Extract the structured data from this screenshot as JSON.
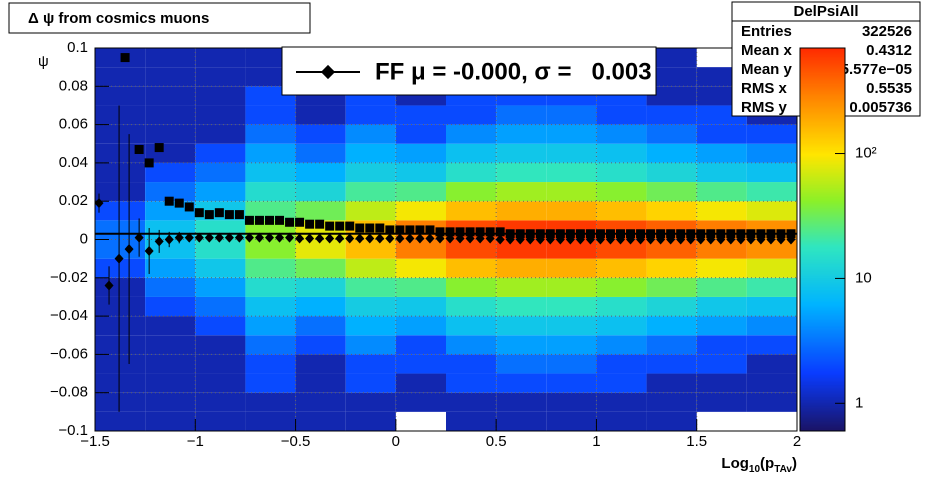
{
  "chart_data": {
    "type": "heatmap-profile",
    "title": "Δ ψ from cosmics muons",
    "y_label": "ψ",
    "x_label_parts": [
      {
        "text": "Log",
        "sub": false
      },
      {
        "text": "10",
        "sub": true
      },
      {
        "text": "(p",
        "sub": false
      },
      {
        "text": "TAv",
        "sub": true
      },
      {
        "text": ")",
        "sub": false
      }
    ],
    "xlim": [
      -1.5,
      2
    ],
    "ylim": [
      -0.1,
      0.1
    ],
    "xticks": [
      {
        "value": -1.5,
        "label": "−1.5"
      },
      {
        "value": -1,
        "label": "−1"
      },
      {
        "value": -0.5,
        "label": "−0.5"
      },
      0,
      0.5,
      1,
      1.5,
      2
    ],
    "yticks": [
      {
        "value": -0.1,
        "label": "−0.1"
      },
      {
        "value": -0.08,
        "label": "−0.08"
      },
      {
        "value": -0.06,
        "label": "−0.06"
      },
      {
        "value": -0.04,
        "label": "−0.04"
      },
      {
        "value": -0.02,
        "label": "−0.02"
      },
      0,
      0.02,
      0.04,
      0.06,
      0.08,
      0.1
    ],
    "zlim": [
      0.6,
      700
    ],
    "zticks": [
      1,
      10,
      {
        "value": 100,
        "label": "10²"
      }
    ],
    "zlog": true,
    "grid": true,
    "colormap": [
      [
        0,
        "#1a1466"
      ],
      [
        0.15,
        "#0a3cff"
      ],
      [
        0.33,
        "#00b4ff"
      ],
      [
        0.48,
        "#30e6c0"
      ],
      [
        0.6,
        "#8cf028"
      ],
      [
        0.72,
        "#ffe600"
      ],
      [
        0.86,
        "#ff8c00"
      ],
      [
        1,
        "#ff2a00"
      ]
    ],
    "heatmap": {
      "xbins": [
        -1.5,
        -1.25,
        -1,
        -0.75,
        -0.5,
        -0.25,
        0,
        0.25,
        0.5,
        0.75,
        1,
        1.25,
        1.5,
        1.75,
        2
      ],
      "ybins": [
        -0.1,
        -0.09,
        -0.08,
        -0.07,
        -0.06,
        -0.05,
        -0.04,
        -0.03,
        -0.02,
        -0.01,
        0,
        0.01,
        0.02,
        0.03,
        0.04,
        0.05,
        0.06,
        0.07,
        0.08,
        0.09,
        0.1
      ],
      "counts": [
        [
          1,
          1,
          1,
          1,
          1,
          1,
          1,
          1,
          2,
          3,
          3,
          2,
          1,
          1,
          1,
          1,
          1,
          1,
          1,
          1
        ],
        [
          1,
          1,
          1,
          1,
          1,
          1,
          2,
          3,
          5,
          8,
          8,
          5,
          3,
          2,
          1,
          1,
          1,
          1,
          1,
          1
        ],
        [
          1,
          1,
          1,
          1,
          1,
          2,
          3,
          5,
          9,
          15,
          15,
          9,
          5,
          3,
          2,
          1,
          1,
          1,
          1,
          1
        ],
        [
          1,
          1,
          2,
          2,
          3,
          5,
          8,
          14,
          24,
          40,
          40,
          24,
          14,
          8,
          5,
          3,
          2,
          2,
          1,
          1
        ],
        [
          1,
          1,
          1,
          1,
          2,
          3,
          6,
          12,
          32,
          80,
          80,
          32,
          12,
          6,
          3,
          2,
          1,
          1,
          1,
          1
        ],
        [
          1,
          1,
          2,
          2,
          4,
          6,
          10,
          22,
          60,
          150,
          150,
          60,
          22,
          10,
          6,
          4,
          2,
          2,
          1,
          1
        ],
        [
          0,
          1,
          1,
          2,
          2,
          5,
          9,
          24,
          90,
          300,
          300,
          90,
          24,
          9,
          5,
          2,
          2,
          1,
          1,
          0
        ],
        [
          1,
          1,
          2,
          2,
          4,
          8,
          15,
          40,
          150,
          500,
          500,
          150,
          40,
          15,
          8,
          4,
          2,
          2,
          1,
          1
        ],
        [
          1,
          1,
          2,
          3,
          5,
          9,
          18,
          48,
          180,
          600,
          600,
          180,
          48,
          18,
          9,
          5,
          3,
          2,
          1,
          1
        ],
        [
          1,
          1,
          2,
          3,
          5,
          9,
          18,
          48,
          180,
          600,
          600,
          180,
          48,
          18,
          9,
          5,
          3,
          2,
          1,
          1
        ],
        [
          1,
          1,
          2,
          2,
          4,
          8,
          15,
          40,
          150,
          500,
          500,
          150,
          40,
          15,
          8,
          4,
          2,
          2,
          1,
          1
        ],
        [
          1,
          1,
          1,
          2,
          3,
          6,
          12,
          32,
          120,
          400,
          400,
          120,
          32,
          12,
          6,
          3,
          2,
          1,
          1,
          1
        ],
        [
          0,
          1,
          1,
          2,
          2,
          5,
          9,
          24,
          90,
          300,
          300,
          90,
          24,
          9,
          5,
          2,
          2,
          1,
          1,
          0
        ],
        [
          0,
          1,
          1,
          1,
          2,
          4,
          8,
          20,
          75,
          250,
          250,
          75,
          20,
          8,
          4,
          2,
          1,
          1,
          1,
          0
        ]
      ]
    },
    "reference_line": 0.003,
    "series": [
      {
        "marker": "square",
        "color": "#000000",
        "x": [
          -1.35,
          -1.28,
          -1.23,
          -1.18,
          -1.13,
          -1.08,
          -1.03,
          -0.98,
          -0.93,
          -0.88,
          -0.83,
          -0.78,
          -0.73,
          -0.68,
          -0.63,
          -0.58,
          -0.53,
          -0.48,
          -0.43,
          -0.38,
          -0.33,
          -0.28,
          -0.23,
          -0.18,
          -0.13,
          -0.08,
          -0.03,
          0.02,
          0.07,
          0.12,
          0.17,
          0.22,
          0.27,
          0.32,
          0.37,
          0.42,
          0.47,
          0.52,
          0.57,
          0.62,
          0.67,
          0.72,
          0.77,
          0.82,
          0.87,
          0.92,
          0.97,
          1.02,
          1.07,
          1.12,
          1.17,
          1.22,
          1.27,
          1.32,
          1.37,
          1.42,
          1.47,
          1.52,
          1.57,
          1.62,
          1.67,
          1.72,
          1.77,
          1.82,
          1.87,
          1.92,
          1.97
        ],
        "values": [
          0.095,
          0.047,
          0.04,
          0.048,
          0.02,
          0.019,
          0.017,
          0.014,
          0.013,
          0.014,
          0.013,
          0.013,
          0.01,
          0.01,
          0.01,
          0.01,
          0.009,
          0.009,
          0.008,
          0.008,
          0.007,
          0.007,
          0.007,
          0.006,
          0.006,
          0.006,
          0.005,
          0.005,
          0.005,
          0.005,
          0.005,
          0.004,
          0.004,
          0.004,
          0.004,
          0.004,
          0.004,
          0.004,
          0.003,
          0.003,
          0.003,
          0.003,
          0.003,
          0.003,
          0.003,
          0.003,
          0.003,
          0.003,
          0.003,
          0.003,
          0.003,
          0.003,
          0.003,
          0.003,
          0.003,
          0.003,
          0.003,
          0.003,
          0.003,
          0.003,
          0.003,
          0.003,
          0.003,
          0.003,
          0.003,
          0.003,
          0.003
        ]
      },
      {
        "name": "FF μ = -0.000, σ =   0.003",
        "marker": "diamond",
        "color": "#000000",
        "x": [
          -1.48,
          -1.43,
          -1.38,
          -1.33,
          -1.28,
          -1.23,
          -1.18,
          -1.13,
          -1.08,
          -1.03,
          -0.98,
          -0.93,
          -0.88,
          -0.83,
          -0.78,
          -0.73,
          -0.68,
          -0.63,
          -0.58,
          -0.53,
          -0.48,
          -0.43,
          -0.38,
          -0.33,
          -0.28,
          -0.23,
          -0.18,
          -0.13,
          -0.08,
          -0.03,
          0.02,
          0.07,
          0.12,
          0.17,
          0.22,
          0.27,
          0.32,
          0.37,
          0.42,
          0.47,
          0.52,
          0.57,
          0.62,
          0.67,
          0.72,
          0.77,
          0.82,
          0.87,
          0.92,
          0.97,
          1.02,
          1.07,
          1.12,
          1.17,
          1.22,
          1.27,
          1.32,
          1.37,
          1.42,
          1.47,
          1.52,
          1.57,
          1.62,
          1.67,
          1.72,
          1.77,
          1.82,
          1.87,
          1.92,
          1.97
        ],
        "values": [
          0.019,
          -0.024,
          -0.01,
          -0.005,
          0.001,
          -0.006,
          -0.001,
          0,
          0.001,
          0.001,
          0.001,
          0.001,
          0.001,
          0.001,
          0.001,
          0.001,
          0.001,
          0.001,
          0.001,
          0.001,
          0.0005,
          0.0005,
          0.0005,
          0.0005,
          0.0005,
          0.0005,
          0.0005,
          0.0005,
          0.0005,
          0.0005,
          0.0005,
          0.0005,
          0.0005,
          0.0005,
          0.0005,
          0.0005,
          0.0005,
          0.0005,
          0.0005,
          0.0005,
          0,
          0,
          0,
          0,
          0,
          0,
          0,
          0,
          0,
          0,
          0,
          0,
          0,
          0,
          0,
          0,
          0,
          0,
          0,
          0,
          0,
          0,
          0,
          0,
          0,
          0,
          0,
          0,
          0,
          0
        ],
        "errors": [
          0.005,
          0.01,
          0.08,
          0.06,
          0.01,
          0.012,
          0.006,
          0.004,
          0.003,
          0,
          0,
          0,
          0,
          0,
          0,
          0,
          0,
          0,
          0,
          0,
          0,
          0,
          0,
          0,
          0,
          0,
          0,
          0,
          0,
          0,
          0,
          0,
          0,
          0,
          0,
          0,
          0,
          0,
          0,
          0,
          0,
          0,
          0,
          0,
          0,
          0,
          0,
          0,
          0,
          0,
          0,
          0,
          0,
          0,
          0,
          0,
          0,
          0,
          0,
          0,
          0,
          0,
          0,
          0,
          0,
          0,
          0,
          0,
          0,
          0
        ]
      }
    ],
    "stats": {
      "title": "DelPsiAll",
      "rows": [
        [
          "Entries",
          "322526"
        ],
        [
          "Mean x",
          "0.4312"
        ],
        [
          "Mean y",
          "−5.577e−05"
        ],
        [
          "RMS x",
          "0.5535"
        ],
        [
          "RMS y",
          "0.005736"
        ]
      ]
    }
  }
}
